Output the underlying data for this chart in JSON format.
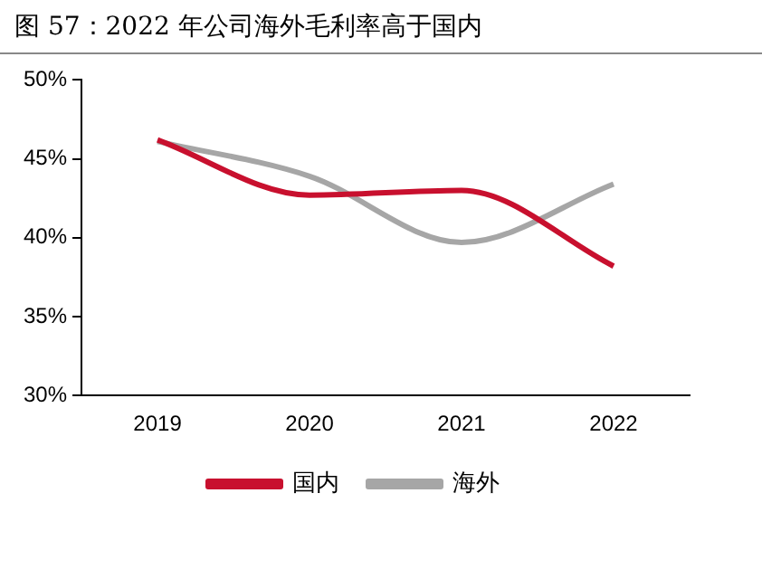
{
  "chart_data": {
    "type": "line",
    "title": "图 57：2022 年公司海外毛利率高于国内",
    "categories": [
      "2019",
      "2020",
      "2021",
      "2022"
    ],
    "series": [
      {
        "name": "国内",
        "color": "#c8102e",
        "values": [
          46.2,
          42.7,
          43.0,
          38.2
        ]
      },
      {
        "name": "海外",
        "color": "#a6a6a6",
        "values": [
          46.1,
          43.9,
          39.7,
          43.4
        ]
      }
    ],
    "ylim": [
      30,
      50
    ],
    "yticks": [
      {
        "value": 30,
        "label": "30%"
      },
      {
        "value": 35,
        "label": "35%"
      },
      {
        "value": 40,
        "label": "40%"
      },
      {
        "value": 45,
        "label": "45%"
      },
      {
        "value": 50,
        "label": "50%"
      }
    ],
    "grid": false,
    "legend": "bottom",
    "marker": "none",
    "line_style": "solid"
  }
}
